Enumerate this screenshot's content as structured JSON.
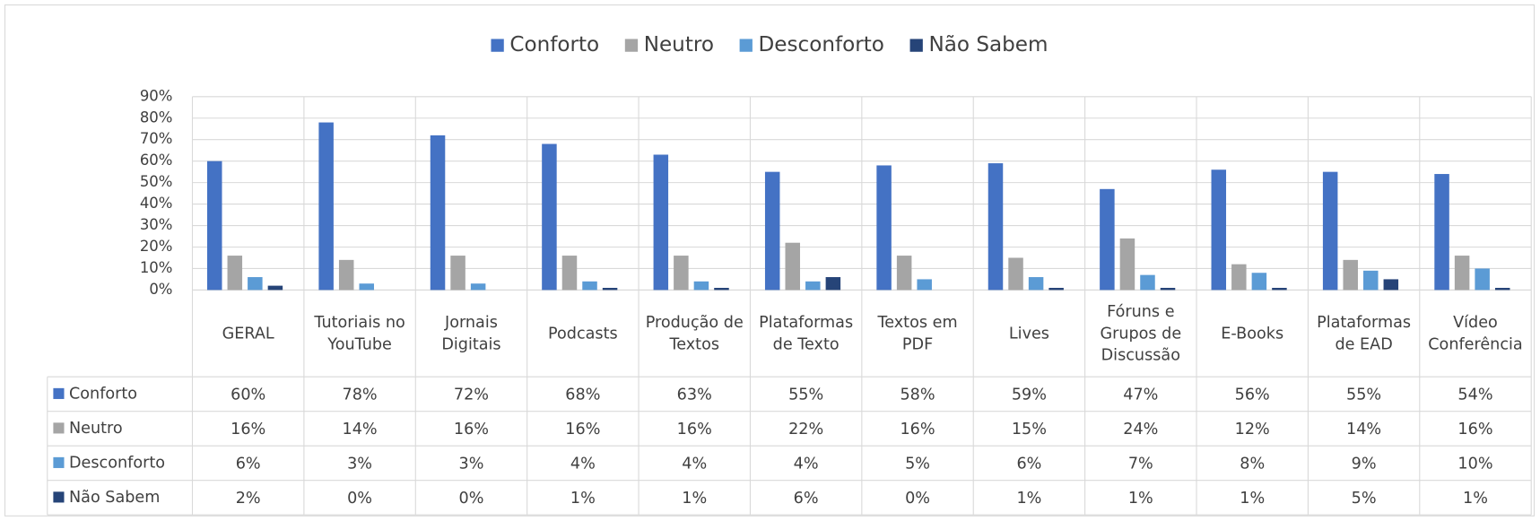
{
  "chart_data": {
    "type": "bar",
    "categories": [
      "GERAL",
      "Tutoriais no YouTube",
      "Jornais Digitais",
      "Podcasts",
      "Produção de Textos",
      "Plataformas de Texto",
      "Textos em PDF",
      "Lives",
      "Fóruns e Grupos de Discussão",
      "E-Books",
      "Plataformas de EAD",
      "Vídeo Conferência"
    ],
    "series": [
      {
        "name": "Conforto",
        "color": "#4472c4",
        "values": [
          60,
          78,
          72,
          68,
          63,
          55,
          58,
          59,
          47,
          56,
          55,
          54
        ],
        "value_labels": [
          "60%",
          "78%",
          "72%",
          "68%",
          "63%",
          "55%",
          "58%",
          "59%",
          "47%",
          "56%",
          "55%",
          "54%"
        ]
      },
      {
        "name": "Neutro",
        "color": "#a5a5a5",
        "values": [
          16,
          14,
          16,
          16,
          16,
          22,
          16,
          15,
          24,
          12,
          14,
          16
        ],
        "value_labels": [
          "16%",
          "14%",
          "16%",
          "16%",
          "16%",
          "22%",
          "16%",
          "15%",
          "24%",
          "12%",
          "14%",
          "16%"
        ]
      },
      {
        "name": "Desconforto",
        "color": "#5b9bd5",
        "values": [
          6,
          3,
          3,
          4,
          4,
          4,
          5,
          6,
          7,
          8,
          9,
          10
        ],
        "value_labels": [
          "6%",
          "3%",
          "3%",
          "4%",
          "4%",
          "4%",
          "5%",
          "6%",
          "7%",
          "8%",
          "9%",
          "10%"
        ]
      },
      {
        "name": "Não Sabem",
        "color": "#264478",
        "values": [
          2,
          0,
          0,
          1,
          1,
          6,
          0,
          1,
          1,
          1,
          5,
          1
        ],
        "value_labels": [
          "2%",
          "0%",
          "0%",
          "1%",
          "1%",
          "6%",
          "0%",
          "1%",
          "1%",
          "1%",
          "5%",
          "1%"
        ]
      }
    ],
    "ylim": [
      0,
      90
    ],
    "yticks": [
      {
        "value": 0,
        "label": "0%"
      },
      {
        "value": 10,
        "label": "10%"
      },
      {
        "value": 20,
        "label": "20%"
      },
      {
        "value": 30,
        "label": "30%"
      },
      {
        "value": 40,
        "label": "40%"
      },
      {
        "value": 50,
        "label": "50%"
      },
      {
        "value": 60,
        "label": "60%"
      },
      {
        "value": 70,
        "label": "70%"
      },
      {
        "value": 80,
        "label": "80%"
      },
      {
        "value": 90,
        "label": "90%"
      }
    ],
    "grid": true,
    "legend": "top"
  }
}
